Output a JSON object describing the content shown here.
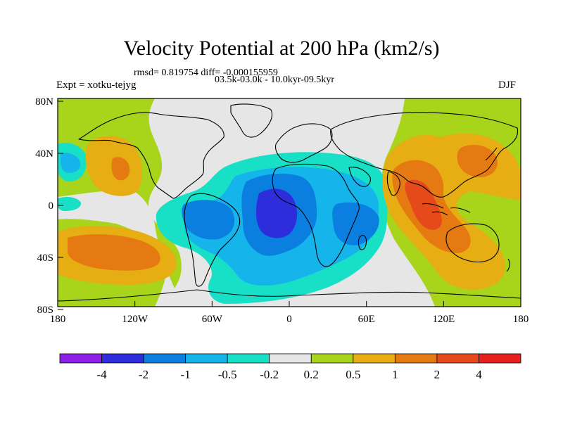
{
  "header": {
    "title": "Velocity Potential at 200 hPa (km2/s)",
    "stats": "rmsd= 0.819754 diff= -0.000155959",
    "period": "03.5k-03.0k - 10.0kyr-09.5kyr",
    "experiment": "Expt = xotku-tejyg",
    "season": "DJF"
  },
  "axes": {
    "lat_labels": [
      "80N",
      "40N",
      "0",
      "40S",
      "80S"
    ],
    "lon_labels": [
      "180",
      "120W",
      "60W",
      "0",
      "60E",
      "120E",
      "180"
    ]
  },
  "colorbar": {
    "colors": [
      "#8d1fe6",
      "#2d2ddc",
      "#0b7fdf",
      "#15b4ea",
      "#18e0c6",
      "#e6e6e6",
      "#a8d41b",
      "#e6ae12",
      "#e67a12",
      "#e6491a",
      "#e61f1f"
    ],
    "labels": [
      "-4",
      "-2",
      "-1",
      "-0.5",
      "-0.2",
      "0.2",
      "0.5",
      "1",
      "2",
      "4"
    ]
  },
  "palette": {
    "neutral": "#e6e6e6",
    "pos1": "#a8d41b",
    "pos2": "#e6ae12",
    "pos3": "#e67a12",
    "pos4": "#e6491a",
    "neg1": "#18e0c6",
    "neg2": "#15b4ea",
    "neg3": "#0b7fdf",
    "neg4": "#2d2ddc"
  }
}
